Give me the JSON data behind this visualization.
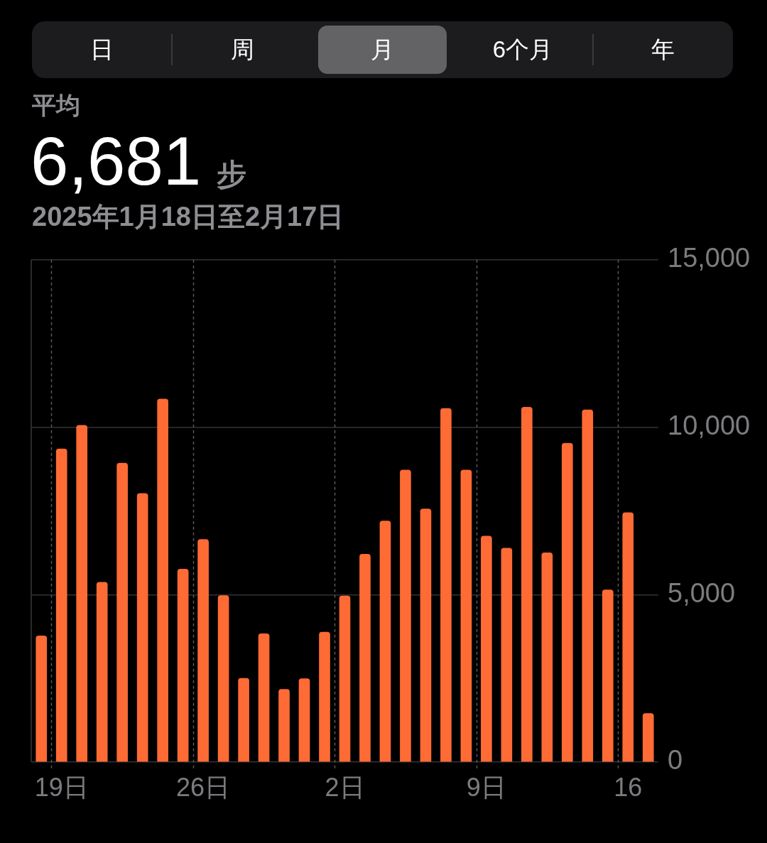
{
  "chart_data": {
    "type": "bar",
    "title": "6,681",
    "subtitle": "2025年1月18日至2月17日",
    "annotations": [
      "平均",
      "步",
      "日",
      "周",
      "月",
      "6个月",
      "年"
    ],
    "categories": [
      null,
      "19日",
      null,
      null,
      null,
      null,
      null,
      null,
      "26日",
      null,
      null,
      null,
      null,
      null,
      null,
      "2日",
      null,
      null,
      null,
      null,
      null,
      null,
      "9日",
      null,
      null,
      null,
      null,
      null,
      null,
      "16",
      null
    ],
    "values": [
      3770,
      9350,
      10060,
      5370,
      8930,
      8020,
      10840,
      5760,
      6650,
      4970,
      2500,
      3830,
      2170,
      2490,
      3880,
      4960,
      6210,
      7200,
      8720,
      7560,
      10560,
      8720,
      6750,
      6390,
      10600,
      6250,
      9520,
      10520,
      5140,
      7450,
      1450
    ],
    "color": "#ff6b35",
    "ylim": [
      0,
      15000
    ],
    "yticks": [
      0,
      {
        "value": 5000,
        "label": "5,000"
      },
      {
        "value": 10000,
        "label": "10,000"
      },
      {
        "value": 15000,
        "label": "15,000"
      }
    ],
    "grid": true
  }
}
